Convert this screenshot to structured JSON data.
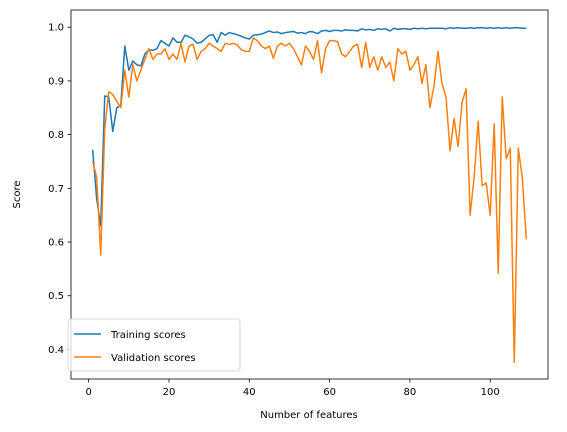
{
  "chart_data": {
    "type": "line",
    "title": "",
    "xlabel": "Number of features",
    "ylabel": "Score",
    "xlim": [
      -4.4,
      114.4
    ],
    "ylim": [
      0.345,
      1.032
    ],
    "xticks": [
      0,
      20,
      40,
      60,
      80,
      100
    ],
    "xtick_labels": [
      "0",
      "20",
      "40",
      "60",
      "80",
      "100"
    ],
    "yticks": [
      0.4,
      0.5,
      0.6,
      0.7,
      0.8,
      0.9,
      1.0
    ],
    "ytick_labels": [
      "0.4",
      "0.5",
      "0.6",
      "0.7",
      "0.8",
      "0.9",
      "1.0"
    ],
    "grid": false,
    "legend_position": "lower-left",
    "x": [
      1,
      2,
      3,
      4,
      5,
      6,
      7,
      8,
      9,
      10,
      11,
      12,
      13,
      14,
      15,
      16,
      17,
      18,
      19,
      20,
      21,
      22,
      23,
      24,
      25,
      26,
      27,
      28,
      29,
      30,
      31,
      32,
      33,
      34,
      35,
      36,
      37,
      38,
      39,
      40,
      41,
      42,
      43,
      44,
      45,
      46,
      47,
      48,
      49,
      50,
      51,
      52,
      53,
      54,
      55,
      56,
      57,
      58,
      59,
      60,
      61,
      62,
      63,
      64,
      65,
      66,
      67,
      68,
      69,
      70,
      71,
      72,
      73,
      74,
      75,
      76,
      77,
      78,
      79,
      80,
      81,
      82,
      83,
      84,
      85,
      86,
      87,
      88,
      89,
      90,
      91,
      92,
      93,
      94,
      95,
      96,
      97,
      98,
      99,
      100,
      101,
      102,
      103,
      104,
      105,
      106,
      107,
      108,
      109
    ],
    "series": [
      {
        "name": "Training scores",
        "color": "#1f77b4",
        "values": [
          0.772,
          0.68,
          0.63,
          0.872,
          0.87,
          0.806,
          0.85,
          0.855,
          0.965,
          0.92,
          0.937,
          0.93,
          0.928,
          0.95,
          0.958,
          0.957,
          0.96,
          0.975,
          0.97,
          0.965,
          0.98,
          0.972,
          0.972,
          0.985,
          0.982,
          0.978,
          0.97,
          0.972,
          0.978,
          0.985,
          0.986,
          0.972,
          0.99,
          0.985,
          0.99,
          0.988,
          0.986,
          0.983,
          0.98,
          0.978,
          0.985,
          0.986,
          0.987,
          0.99,
          0.993,
          0.99,
          0.991,
          0.988,
          0.99,
          0.991,
          0.992,
          0.989,
          0.99,
          0.988,
          0.992,
          0.991,
          0.988,
          0.993,
          0.994,
          0.992,
          0.994,
          0.994,
          0.993,
          0.995,
          0.994,
          0.994,
          0.993,
          0.997,
          0.995,
          0.996,
          0.994,
          0.997,
          0.996,
          0.997,
          0.993,
          0.998,
          0.996,
          0.997,
          0.997,
          0.996,
          0.998,
          0.997,
          0.998,
          0.997,
          0.998,
          0.998,
          0.998,
          0.998,
          0.997,
          0.999,
          0.998,
          0.999,
          0.998,
          0.998,
          0.999,
          0.998,
          0.999,
          0.999,
          0.998,
          0.999,
          0.998,
          0.999,
          0.998,
          0.999,
          0.998,
          0.999,
          0.999,
          0.998,
          0.998
        ]
      },
      {
        "name": "Validation scores",
        "color": "#ff7f0e",
        "values": [
          0.75,
          0.72,
          0.576,
          0.81,
          0.88,
          0.875,
          0.862,
          0.85,
          0.92,
          0.87,
          0.93,
          0.9,
          0.92,
          0.94,
          0.96,
          0.94,
          0.95,
          0.95,
          0.96,
          0.94,
          0.95,
          0.94,
          0.97,
          0.935,
          0.965,
          0.968,
          0.94,
          0.955,
          0.96,
          0.97,
          0.965,
          0.96,
          0.955,
          0.97,
          0.968,
          0.97,
          0.967,
          0.958,
          0.955,
          0.955,
          0.98,
          0.975,
          0.965,
          0.96,
          0.965,
          0.942,
          0.965,
          0.97,
          0.965,
          0.97,
          0.96,
          0.945,
          0.93,
          0.965,
          0.955,
          0.94,
          0.975,
          0.915,
          0.96,
          0.975,
          0.975,
          0.973,
          0.95,
          0.945,
          0.955,
          0.965,
          0.968,
          0.925,
          0.972,
          0.925,
          0.945,
          0.92,
          0.945,
          0.925,
          0.935,
          0.9,
          0.96,
          0.95,
          0.955,
          0.92,
          0.93,
          0.945,
          0.895,
          0.93,
          0.85,
          0.89,
          0.955,
          0.895,
          0.87,
          0.77,
          0.83,
          0.778,
          0.86,
          0.885,
          0.65,
          0.72,
          0.825,
          0.705,
          0.71,
          0.65,
          0.82,
          0.542,
          0.87,
          0.755,
          0.775,
          0.376,
          0.775,
          0.72,
          0.605
        ]
      }
    ]
  }
}
